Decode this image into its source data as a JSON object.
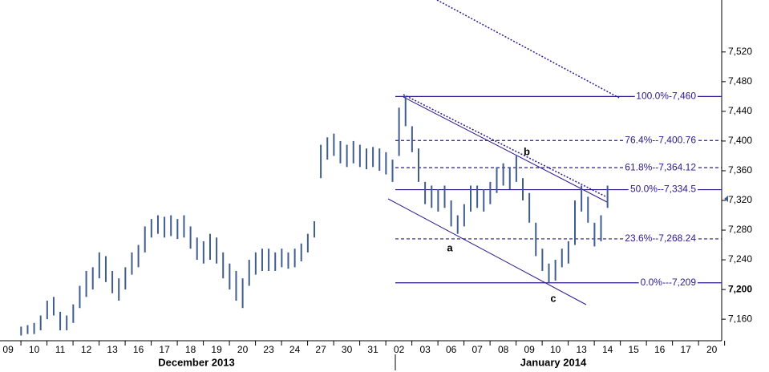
{
  "chart_data": {
    "type": "ohlc",
    "color": "#3f5d8f",
    "level_color": "#2b1a8c",
    "ylim": [
      7131,
      7590
    ],
    "yticks": [
      {
        "value": 7160,
        "label": "7,160"
      },
      {
        "value": 7200,
        "label": "7,200"
      },
      {
        "value": 7240,
        "label": "7,240"
      },
      {
        "value": 7280,
        "label": "7,280"
      },
      {
        "value": 7320,
        "label": "7,320"
      },
      {
        "value": 7360,
        "label": "7,360"
      },
      {
        "value": 7400,
        "label": "7,400"
      },
      {
        "value": 7440,
        "label": "7,440"
      },
      {
        "value": 7480,
        "label": "7,480"
      },
      {
        "value": 7520,
        "label": "7,520"
      }
    ],
    "xlim": [
      -0.31,
      27.38
    ],
    "xticks": [
      {
        "value": 0,
        "label": "09"
      },
      {
        "value": 1,
        "label": "10"
      },
      {
        "value": 2,
        "label": "11"
      },
      {
        "value": 3,
        "label": "12"
      },
      {
        "value": 4,
        "label": "13"
      },
      {
        "value": 5,
        "label": "16"
      },
      {
        "value": 6,
        "label": "17"
      },
      {
        "value": 7,
        "label": "18"
      },
      {
        "value": 8,
        "label": "19"
      },
      {
        "value": 9,
        "label": "20"
      },
      {
        "value": 10,
        "label": "23"
      },
      {
        "value": 11,
        "label": "24"
      },
      {
        "value": 12,
        "label": "27"
      },
      {
        "value": 13,
        "label": "30"
      },
      {
        "value": 14,
        "label": "31"
      },
      {
        "value": 15,
        "label": "02"
      },
      {
        "value": 16,
        "label": "03"
      },
      {
        "value": 17,
        "label": "06"
      },
      {
        "value": 18,
        "label": "07"
      },
      {
        "value": 19,
        "label": "08"
      },
      {
        "value": 20,
        "label": "09"
      },
      {
        "value": 21,
        "label": "10"
      },
      {
        "value": 22,
        "label": "13"
      },
      {
        "value": 23,
        "label": "14"
      },
      {
        "value": 24,
        "label": "15"
      },
      {
        "value": 25,
        "label": "16"
      },
      {
        "value": 26,
        "label": "17"
      },
      {
        "value": 27,
        "label": "20"
      }
    ],
    "x_group_labels": [
      "December 2013",
      "January 2014"
    ],
    "annotations": [
      "a",
      "b",
      "c"
    ],
    "fib_levels": [
      {
        "value": 7460,
        "label": "100.0%-7,460"
      },
      {
        "value": 7400.76,
        "label": "76.4%--7,400.76"
      },
      {
        "value": 7364.12,
        "label": "61.8%--7,364.12"
      },
      {
        "value": 7334.5,
        "label": "50.0%--7,334.5"
      },
      {
        "value": 7268.24,
        "label": "23.6%--7,268.24"
      },
      {
        "value": 7209,
        "label": "0.0%---7,209"
      }
    ],
    "fib_dashed": [
      false,
      true,
      true,
      false,
      true,
      false
    ],
    "x": [
      0.5,
      0.75,
      1,
      1.25,
      1.5,
      1.75,
      2,
      2.25,
      2.5,
      2.75,
      3,
      3.25,
      3.5,
      3.75,
      4,
      4.25,
      4.5,
      4.75,
      5,
      5.25,
      5.5,
      5.75,
      6,
      6.25,
      6.5,
      6.75,
      7,
      7.25,
      7.5,
      7.75,
      8,
      8.25,
      8.5,
      8.75,
      9,
      9.25,
      9.5,
      9.75,
      10,
      10.25,
      10.5,
      10.75,
      11,
      11.25,
      11.5,
      11.75,
      12,
      12.25,
      12.5,
      12.75,
      13,
      13.25,
      13.5,
      13.75,
      14,
      14.25,
      14.5,
      14.75,
      15,
      15.25,
      15.5,
      15.75,
      16,
      16.25,
      16.5,
      16.75,
      17,
      17.25,
      17.5,
      17.75,
      18,
      18.25,
      18.5,
      18.75,
      19,
      19.25,
      19.5,
      19.75,
      20,
      20.25,
      20.5,
      20.75,
      21,
      21.25,
      21.5,
      21.75,
      22,
      22.25,
      22.5,
      22.75,
      23
    ],
    "high": [
      7150,
      7152,
      7155,
      7165,
      7185,
      7190,
      7170,
      7165,
      7180,
      7205,
      7225,
      7230,
      7250,
      7245,
      7225,
      7215,
      7230,
      7250,
      7260,
      7285,
      7295,
      7300,
      7298,
      7300,
      7295,
      7300,
      7285,
      7270,
      7265,
      7275,
      7270,
      7250,
      7235,
      7225,
      7215,
      7240,
      7250,
      7255,
      7255,
      7250,
      7255,
      7250,
      7255,
      7262,
      7275,
      7292,
      7395,
      7405,
      7410,
      7400,
      7395,
      7400,
      7395,
      7390,
      7392,
      7390,
      7385,
      7375,
      7445,
      7460,
      7420,
      7390,
      7345,
      7340,
      7335,
      7340,
      7320,
      7300,
      7315,
      7340,
      7340,
      7335,
      7345,
      7365,
      7370,
      7365,
      7380,
      7350,
      7330,
      7290,
      7255,
      7235,
      7240,
      7255,
      7265,
      7320,
      7340,
      7325,
      7290,
      7300,
      7340
    ],
    "low": [
      7138,
      7140,
      7140,
      7145,
      7160,
      7165,
      7145,
      7145,
      7155,
      7175,
      7190,
      7200,
      7215,
      7210,
      7195,
      7185,
      7200,
      7220,
      7230,
      7250,
      7270,
      7275,
      7270,
      7272,
      7268,
      7270,
      7255,
      7240,
      7235,
      7240,
      7235,
      7215,
      7200,
      7185,
      7175,
      7205,
      7220,
      7225,
      7225,
      7225,
      7230,
      7228,
      7230,
      7238,
      7250,
      7270,
      7350,
      7375,
      7380,
      7370,
      7365,
      7370,
      7365,
      7362,
      7365,
      7360,
      7355,
      7345,
      7380,
      7420,
      7385,
      7345,
      7315,
      7310,
      7305,
      7310,
      7285,
      7275,
      7285,
      7305,
      7310,
      7305,
      7315,
      7330,
      7340,
      7335,
      7345,
      7320,
      7290,
      7245,
      7225,
      7209,
      7212,
      7230,
      7235,
      7260,
      7305,
      7290,
      7258,
      7265,
      7310
    ]
  }
}
